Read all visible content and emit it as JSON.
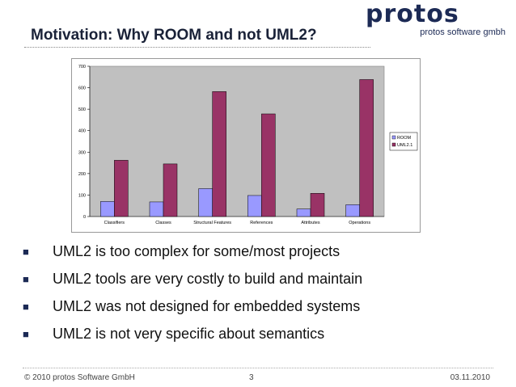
{
  "slide": {
    "title": "Motivation: Why ROOM and not UML2?"
  },
  "logo": {
    "wordmark": "protos",
    "subtitle": "protos software gmbh"
  },
  "chart_data": {
    "type": "bar",
    "categories": [
      "Classifiers",
      "Classes",
      "Structural Features",
      "References",
      "Attributes",
      "Operations"
    ],
    "series": [
      {
        "name": "ROOM",
        "values": [
          70,
          68,
          130,
          98,
          35,
          55
        ],
        "color": "#9999ff"
      },
      {
        "name": "UML2.1",
        "values": [
          262,
          245,
          582,
          478,
          108,
          638
        ],
        "color": "#993366"
      }
    ],
    "yticks": [
      0,
      100,
      200,
      300,
      400,
      500,
      600,
      700
    ],
    "ylim": [
      0,
      700
    ],
    "grid": false,
    "legend": "right",
    "plot_bg": "#c0c0c0"
  },
  "bullets": [
    "UML2 is too complex for some/most projects",
    "UML2 tools are very costly to build and maintain",
    "UML2 was not designed for embedded systems",
    "UML2 is not very specific about semantics"
  ],
  "footer": {
    "left": "© 2010 protos Software GmbH",
    "page": "3",
    "date": "03.11.2010"
  }
}
